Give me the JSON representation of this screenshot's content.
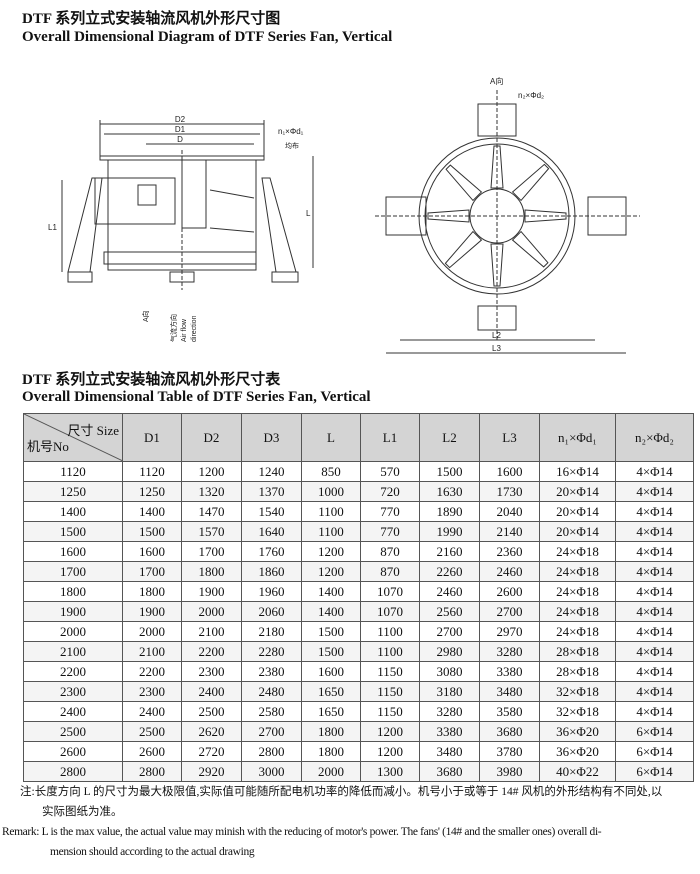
{
  "titles": {
    "diagram_cn": "DTF 系列立式安装轴流风机外形尺寸图",
    "diagram_en": "Overall Dimensional Diagram of DTF Series Fan, Vertical",
    "table_cn": "DTF 系列立式安装轴流风机外形尺寸表",
    "table_en": "Overall Dimensional Table of DTF Series Fan, Vertical"
  },
  "diagram": {
    "side": {
      "d2": "D2",
      "d1": "D1",
      "d": "D",
      "holes": "n₁×Φd₁",
      "holes_note": "均布",
      "l": "L",
      "l1": "L1",
      "a_dir": "A向",
      "airflow_cn": "气流方向",
      "airflow_en1": "Air flow",
      "airflow_en2": "direction"
    },
    "front": {
      "a_dir": "A向",
      "holes": "n₂×Φd₂",
      "l2": "L2",
      "l3": "L3"
    }
  },
  "table": {
    "corner_top": "尺寸 Size",
    "corner_bottom": "机号No",
    "headers": [
      "D1",
      "D2",
      "D3",
      "L",
      "L1",
      "L2",
      "L3",
      "n₁×Φd₁",
      "n₂×Φd₂"
    ],
    "rows": [
      [
        "1120",
        "1120",
        "1200",
        "1240",
        "850",
        "570",
        "1500",
        "1600",
        "16×Φ14",
        "4×Φ14"
      ],
      [
        "1250",
        "1250",
        "1320",
        "1370",
        "1000",
        "720",
        "1630",
        "1730",
        "20×Φ14",
        "4×Φ14"
      ],
      [
        "1400",
        "1400",
        "1470",
        "1540",
        "1100",
        "770",
        "1890",
        "2040",
        "20×Φ14",
        "4×Φ14"
      ],
      [
        "1500",
        "1500",
        "1570",
        "1640",
        "1100",
        "770",
        "1990",
        "2140",
        "20×Φ14",
        "4×Φ14"
      ],
      [
        "1600",
        "1600",
        "1700",
        "1760",
        "1200",
        "870",
        "2160",
        "2360",
        "24×Φ18",
        "4×Φ14"
      ],
      [
        "1700",
        "1700",
        "1800",
        "1860",
        "1200",
        "870",
        "2260",
        "2460",
        "24×Φ18",
        "4×Φ14"
      ],
      [
        "1800",
        "1800",
        "1900",
        "1960",
        "1400",
        "1070",
        "2460",
        "2600",
        "24×Φ18",
        "4×Φ14"
      ],
      [
        "1900",
        "1900",
        "2000",
        "2060",
        "1400",
        "1070",
        "2560",
        "2700",
        "24×Φ18",
        "4×Φ14"
      ],
      [
        "2000",
        "2000",
        "2100",
        "2180",
        "1500",
        "1100",
        "2700",
        "2970",
        "24×Φ18",
        "4×Φ14"
      ],
      [
        "2100",
        "2100",
        "2200",
        "2280",
        "1500",
        "1100",
        "2980",
        "3280",
        "28×Φ18",
        "4×Φ14"
      ],
      [
        "2200",
        "2200",
        "2300",
        "2380",
        "1600",
        "1150",
        "3080",
        "3380",
        "28×Φ18",
        "4×Φ14"
      ],
      [
        "2300",
        "2300",
        "2400",
        "2480",
        "1650",
        "1150",
        "3180",
        "3480",
        "32×Φ18",
        "4×Φ14"
      ],
      [
        "2400",
        "2400",
        "2500",
        "2580",
        "1650",
        "1150",
        "3280",
        "3580",
        "32×Φ18",
        "4×Φ14"
      ],
      [
        "2500",
        "2500",
        "2620",
        "2700",
        "1800",
        "1200",
        "3380",
        "3680",
        "36×Φ20",
        "6×Φ14"
      ],
      [
        "2600",
        "2600",
        "2720",
        "2800",
        "1800",
        "1200",
        "3480",
        "3780",
        "36×Φ20",
        "6×Φ14"
      ],
      [
        "2800",
        "2800",
        "2920",
        "3000",
        "2000",
        "1300",
        "3680",
        "3980",
        "40×Φ22",
        "6×Φ14"
      ]
    ]
  },
  "notes": {
    "cn_line1": "注:长度方向 L 的尺寸为最大极限值,实际值可能随所配电机功率的降低而减小。机号小于或等于 14# 风机的外形结构有不同处,以",
    "cn_line2": "实际图纸为准。",
    "en_line1": "Remark: L is the max value, the actual value may minish with the reducing of motor's power. The fans' (14# and the smaller ones) overall di-",
    "en_line2": "mension should according to the actual drawing"
  }
}
